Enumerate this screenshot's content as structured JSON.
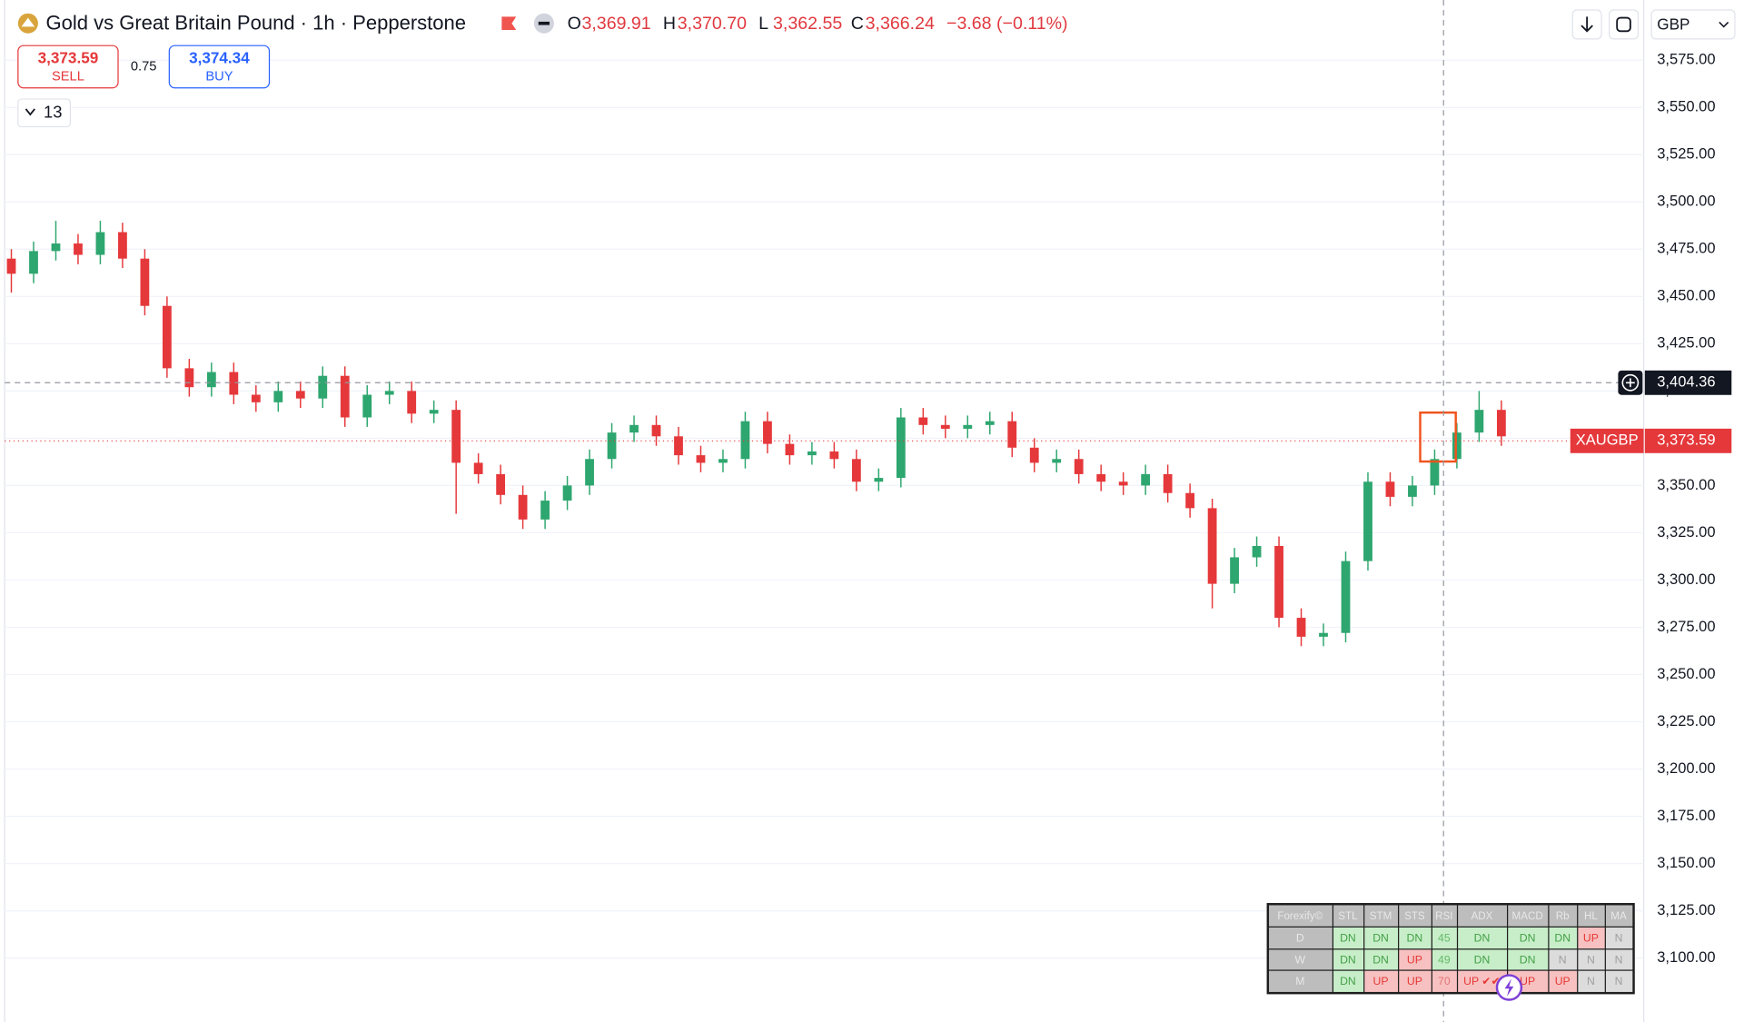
{
  "toolbar": {
    "title": "Gold vs Great Britain Pound · 1h · Pepperstone",
    "ohlc": [
      {
        "key": "O",
        "value": "3,369.91"
      },
      {
        "key": "H",
        "value": "3,370.70"
      },
      {
        "key": "L",
        "value": "3,362.55"
      },
      {
        "key": "C",
        "value": "3,366.24"
      }
    ],
    "change": "−3.68 (−0.11%)",
    "sell_price": "3,373.59",
    "sell_label": "SELL",
    "spread": "0.75",
    "buy_price": "3,374.34",
    "buy_label": "BUY",
    "indicators_count": "13",
    "currency": "GBP"
  },
  "chart_data": {
    "type": "candlestick",
    "up_color": "#2ea66f",
    "down_color": "#e5383b",
    "open": [
      3470,
      3462,
      3474,
      3478,
      3472,
      3484,
      3470,
      3445,
      3412,
      3402,
      3410,
      3398,
      3394,
      3400,
      3396,
      3408,
      3386,
      3398,
      3400,
      3388,
      3390,
      3362,
      3356,
      3345,
      3332,
      3342,
      3350,
      3364,
      3378,
      3382,
      3376,
      3366,
      3362,
      3364,
      3384,
      3372,
      3366,
      3368,
      3364,
      3352,
      3354,
      3386,
      3382,
      3380,
      3382,
      3384,
      3370,
      3362,
      3364,
      3356,
      3352,
      3350,
      3356,
      3346,
      3338,
      3298,
      3312,
      3318,
      3280,
      3270,
      3272,
      3310,
      3352,
      3344,
      3350,
      3364,
      3378,
      3390
    ],
    "high": [
      3475,
      3479,
      3490,
      3483,
      3490,
      3489,
      3475,
      3450,
      3417,
      3415,
      3415,
      3403,
      3405,
      3405,
      3413,
      3413,
      3403,
      3405,
      3405,
      3395,
      3395,
      3367,
      3361,
      3350,
      3347,
      3355,
      3369,
      3383,
      3387,
      3387,
      3381,
      3371,
      3369,
      3389,
      3389,
      3377,
      3373,
      3373,
      3369,
      3359,
      3391,
      3391,
      3387,
      3387,
      3389,
      3389,
      3375,
      3369,
      3369,
      3361,
      3357,
      3361,
      3361,
      3351,
      3343,
      3317,
      3323,
      3323,
      3285,
      3277,
      3315,
      3357,
      3357,
      3355,
      3369,
      3383,
      3400,
      3395
    ],
    "low": [
      3452,
      3457,
      3469,
      3467,
      3467,
      3465,
      3440,
      3407,
      3397,
      3397,
      3393,
      3389,
      3389,
      3391,
      3391,
      3381,
      3381,
      3393,
      3383,
      3383,
      3335,
      3351,
      3340,
      3327,
      3327,
      3337,
      3345,
      3359,
      3373,
      3371,
      3361,
      3357,
      3357,
      3359,
      3367,
      3361,
      3361,
      3359,
      3347,
      3347,
      3349,
      3377,
      3375,
      3375,
      3377,
      3365,
      3357,
      3357,
      3351,
      3347,
      3345,
      3345,
      3341,
      3333,
      3285,
      3293,
      3307,
      3275,
      3265,
      3265,
      3267,
      3305,
      3339,
      3339,
      3345,
      3359,
      3373,
      3371
    ],
    "close": [
      3462,
      3474,
      3478,
      3472,
      3484,
      3470,
      3445,
      3412,
      3402,
      3410,
      3398,
      3394,
      3400,
      3396,
      3408,
      3386,
      3398,
      3400,
      3388,
      3390,
      3362,
      3356,
      3345,
      3332,
      3342,
      3350,
      3364,
      3378,
      3382,
      3376,
      3366,
      3362,
      3364,
      3384,
      3372,
      3366,
      3368,
      3364,
      3352,
      3354,
      3386,
      3382,
      3380,
      3382,
      3384,
      3370,
      3362,
      3364,
      3356,
      3352,
      3350,
      3356,
      3346,
      3338,
      3298,
      3312,
      3318,
      3280,
      3270,
      3272,
      3310,
      3352,
      3344,
      3350,
      3364,
      3378,
      3390,
      3376
    ],
    "ylim": [
      3066.2,
      3606.8
    ],
    "yticks": [
      {
        "value": 3575,
        "label": "3,575.00"
      },
      {
        "value": 3550,
        "label": "3,550.00"
      },
      {
        "value": 3525,
        "label": "3,525.00"
      },
      {
        "value": 3500,
        "label": "3,500.00"
      },
      {
        "value": 3475,
        "label": "3,475.00"
      },
      {
        "value": 3450,
        "label": "3,450.00"
      },
      {
        "value": 3425,
        "label": "3,425.00"
      },
      {
        "value": 3400,
        "label": "3,400.00"
      },
      {
        "value": 3375,
        "label": "3,375.00"
      },
      {
        "value": 3350,
        "label": "3,350.00"
      },
      {
        "value": 3325,
        "label": "3,325.00"
      },
      {
        "value": 3300,
        "label": "3,300.00"
      },
      {
        "value": 3275,
        "label": "3,275.00"
      },
      {
        "value": 3250,
        "label": "3,250.00"
      },
      {
        "value": 3225,
        "label": "3,225.00"
      },
      {
        "value": 3200,
        "label": "3,200.00"
      },
      {
        "value": 3175,
        "label": "3,175.00"
      },
      {
        "value": 3150,
        "label": "3,150.00"
      },
      {
        "value": 3125,
        "label": "3,125.00"
      },
      {
        "value": 3100,
        "label": "3,100.00"
      }
    ],
    "grid": true,
    "crosshair_price": {
      "value": 3404.36,
      "label": "3,404.36"
    },
    "last_price": {
      "value": 3373.59,
      "label": "3,373.59",
      "symbol": "XAUGBP"
    }
  },
  "signal_table": {
    "header": [
      "Forexify©",
      "STL",
      "STM",
      "STS",
      "RSI",
      "ADX",
      "MACD",
      "Rb",
      "HL",
      "MA"
    ],
    "rows": [
      [
        "D",
        "DN",
        "DN",
        "DN",
        "45",
        "DN",
        "DN",
        "DN",
        "UP",
        "N"
      ],
      [
        "W",
        "DN",
        "DN",
        "UP",
        "49",
        "DN",
        "DN",
        "N",
        "N",
        "N"
      ],
      [
        "M",
        "DN",
        "UP",
        "UP",
        "70",
        "UP ✔✔",
        "UP",
        "UP",
        "N",
        "N"
      ]
    ]
  }
}
